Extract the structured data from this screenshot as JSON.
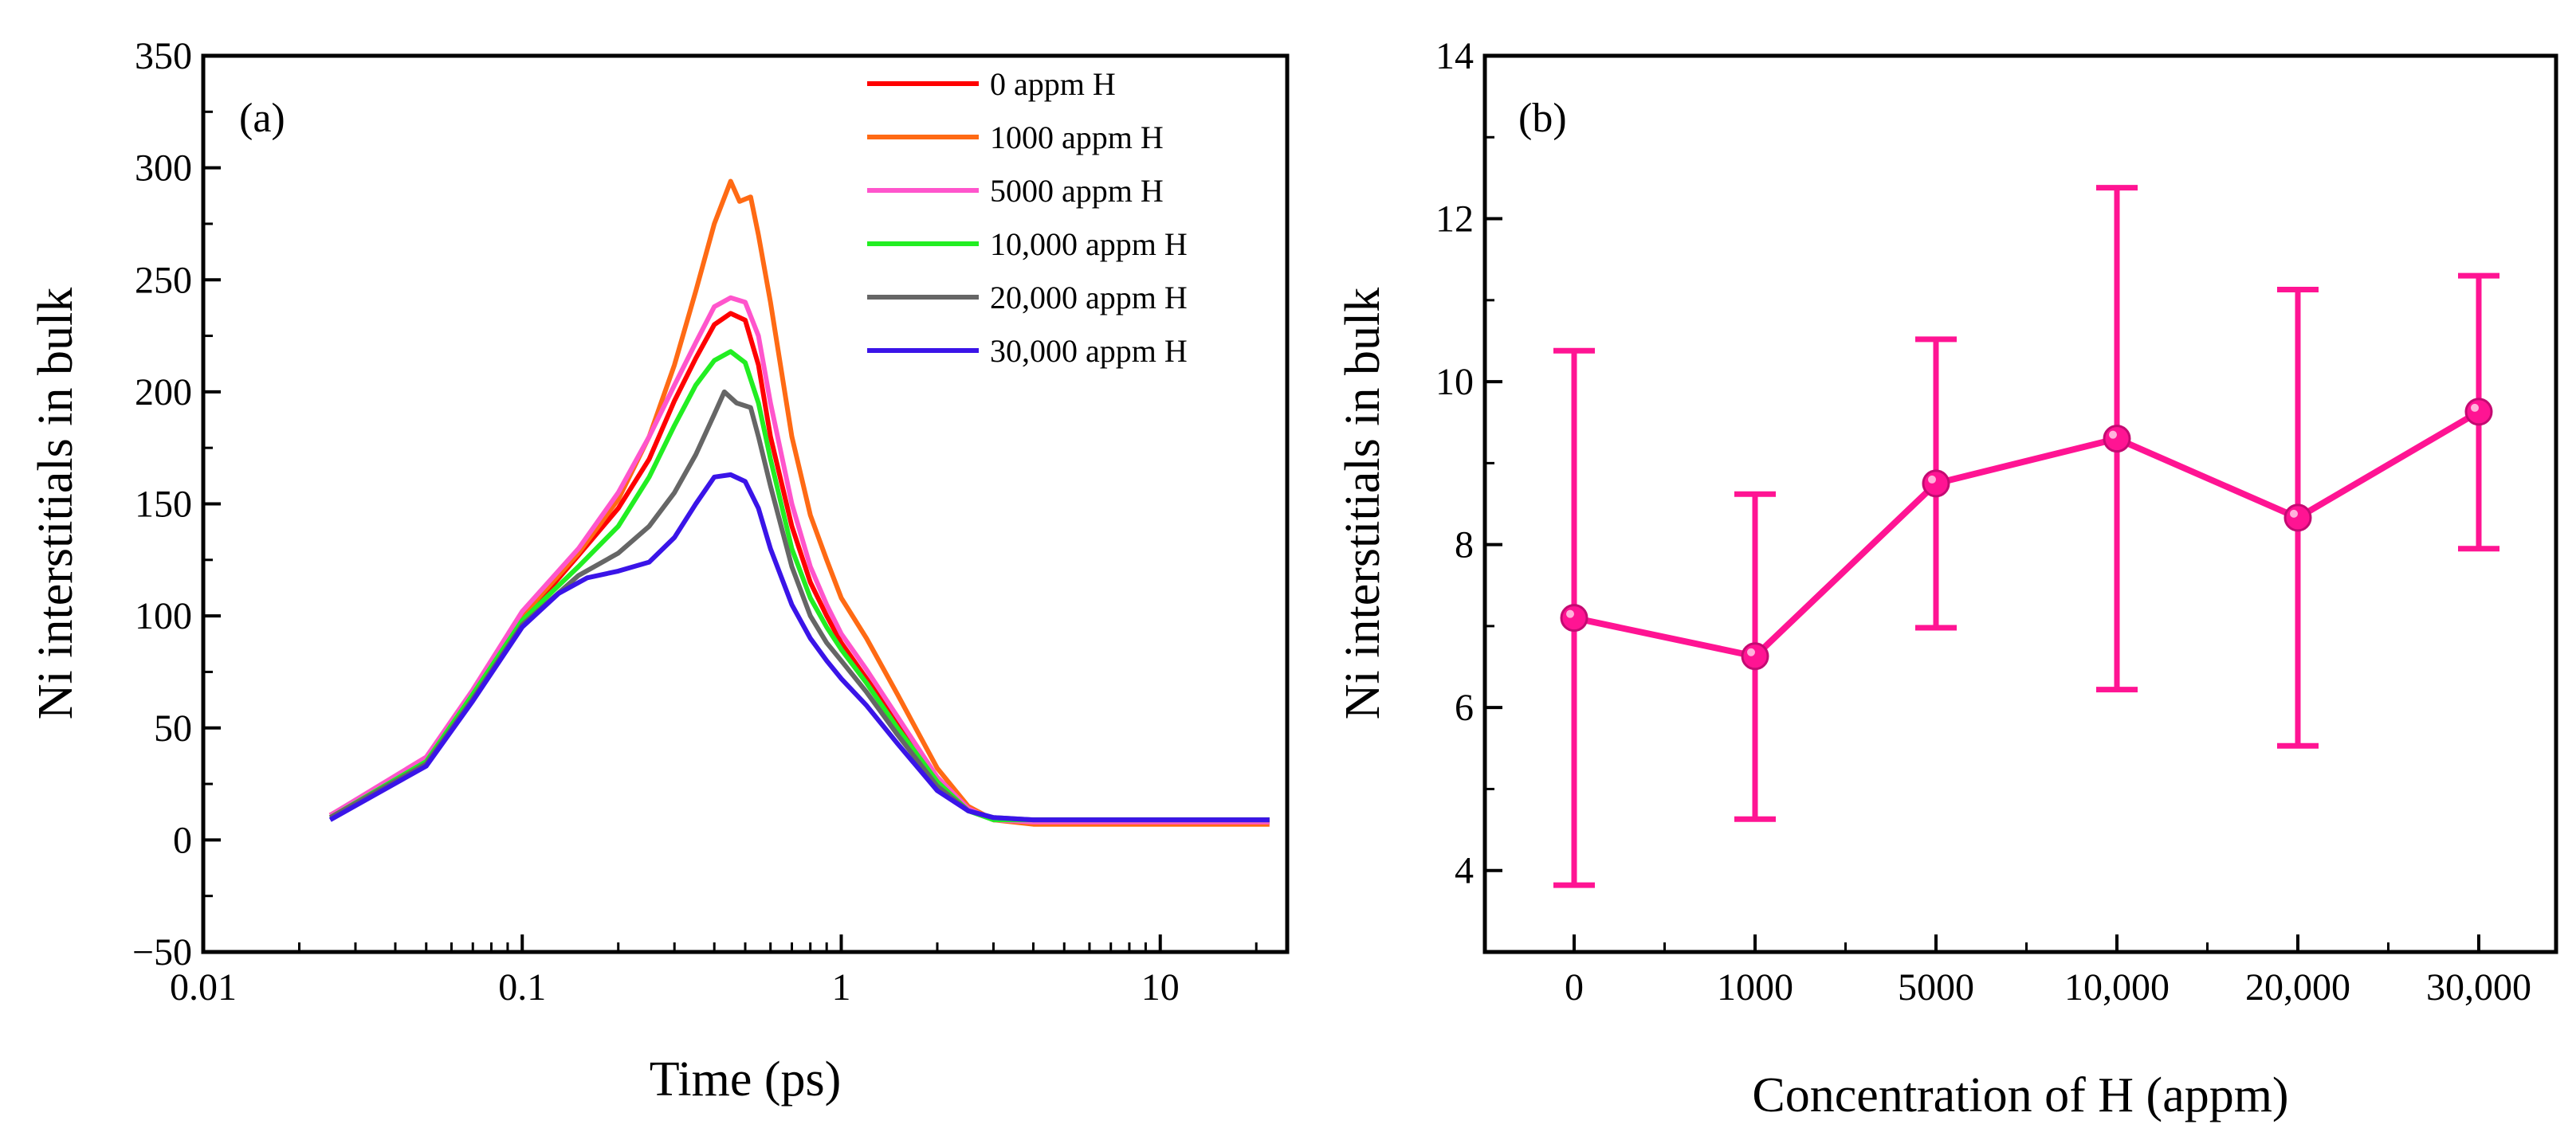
{
  "chart_data": [
    {
      "panel": "(a)",
      "type": "line",
      "xscale": "log",
      "xlabel": "Time (ps)",
      "ylabel": "Ni interstitials in bulk",
      "xlim": [
        0.01,
        25
      ],
      "ylim": [
        -50,
        350
      ],
      "xticks": [
        0.01,
        0.1,
        1,
        10
      ],
      "xtick_labels": [
        "0.01",
        "0.1",
        "1",
        "10"
      ],
      "yticks": [
        -50,
        0,
        50,
        100,
        150,
        200,
        250,
        300,
        350
      ],
      "ytick_labels": [
        "−50",
        "0",
        "50",
        "100",
        "150",
        "200",
        "250",
        "300",
        "350"
      ],
      "legend": "top-right",
      "series": [
        {
          "name": "0 appm H",
          "color": "#ff0000",
          "points": [
            [
              0.025,
              11
            ],
            [
              0.05,
              36
            ],
            [
              0.07,
              65
            ],
            [
              0.1,
              98
            ],
            [
              0.15,
              127
            ],
            [
              0.2,
              148
            ],
            [
              0.25,
              170
            ],
            [
              0.3,
              196
            ],
            [
              0.35,
              215
            ],
            [
              0.4,
              230
            ],
            [
              0.45,
              235
            ],
            [
              0.5,
              232
            ],
            [
              0.55,
              212
            ],
            [
              0.6,
              180
            ],
            [
              0.7,
              140
            ],
            [
              0.8,
              115
            ],
            [
              0.9,
              100
            ],
            [
              1.0,
              88
            ],
            [
              1.2,
              72
            ],
            [
              1.5,
              52
            ],
            [
              2.0,
              27
            ],
            [
              2.5,
              14
            ],
            [
              3.0,
              9
            ],
            [
              4.0,
              8
            ],
            [
              6.0,
              8
            ],
            [
              10,
              8
            ],
            [
              22,
              8
            ]
          ]
        },
        {
          "name": "1000 appm H",
          "color": "#ff6a14",
          "points": [
            [
              0.025,
              11
            ],
            [
              0.05,
              36
            ],
            [
              0.07,
              66
            ],
            [
              0.1,
              100
            ],
            [
              0.15,
              128
            ],
            [
              0.2,
              152
            ],
            [
              0.25,
              180
            ],
            [
              0.3,
              212
            ],
            [
              0.35,
              245
            ],
            [
              0.4,
              275
            ],
            [
              0.45,
              294
            ],
            [
              0.48,
              285
            ],
            [
              0.52,
              287
            ],
            [
              0.55,
              270
            ],
            [
              0.6,
              240
            ],
            [
              0.7,
              180
            ],
            [
              0.8,
              145
            ],
            [
              0.9,
              125
            ],
            [
              1.0,
              108
            ],
            [
              1.2,
              90
            ],
            [
              1.5,
              65
            ],
            [
              2.0,
              32
            ],
            [
              2.5,
              15
            ],
            [
              3.0,
              9
            ],
            [
              4.0,
              7
            ],
            [
              10,
              7
            ],
            [
              22,
              7
            ]
          ]
        },
        {
          "name": "5000 appm H",
          "color": "#ff55cc",
          "points": [
            [
              0.025,
              11
            ],
            [
              0.05,
              37
            ],
            [
              0.07,
              67
            ],
            [
              0.1,
              102
            ],
            [
              0.15,
              130
            ],
            [
              0.2,
              155
            ],
            [
              0.25,
              180
            ],
            [
              0.3,
              203
            ],
            [
              0.35,
              222
            ],
            [
              0.4,
              238
            ],
            [
              0.45,
              242
            ],
            [
              0.5,
              240
            ],
            [
              0.55,
              225
            ],
            [
              0.6,
              195
            ],
            [
              0.7,
              150
            ],
            [
              0.8,
              122
            ],
            [
              0.9,
              105
            ],
            [
              1.0,
              92
            ],
            [
              1.2,
              76
            ],
            [
              1.5,
              55
            ],
            [
              2.0,
              28
            ],
            [
              2.5,
              14
            ],
            [
              3.0,
              9
            ],
            [
              4.0,
              8
            ],
            [
              10,
              8
            ],
            [
              22,
              8
            ]
          ]
        },
        {
          "name": "10,000 appm H",
          "color": "#22ee22",
          "points": [
            [
              0.025,
              10
            ],
            [
              0.05,
              35
            ],
            [
              0.07,
              65
            ],
            [
              0.1,
              98
            ],
            [
              0.15,
              122
            ],
            [
              0.2,
              140
            ],
            [
              0.25,
              162
            ],
            [
              0.3,
              185
            ],
            [
              0.35,
              203
            ],
            [
              0.4,
              214
            ],
            [
              0.45,
              218
            ],
            [
              0.5,
              213
            ],
            [
              0.55,
              195
            ],
            [
              0.6,
              170
            ],
            [
              0.7,
              130
            ],
            [
              0.8,
              108
            ],
            [
              0.9,
              95
            ],
            [
              1.0,
              85
            ],
            [
              1.2,
              70
            ],
            [
              1.5,
              50
            ],
            [
              2.0,
              26
            ],
            [
              2.5,
              13
            ],
            [
              3.0,
              9
            ],
            [
              4.0,
              9
            ],
            [
              10,
              9
            ],
            [
              22,
              9
            ]
          ]
        },
        {
          "name": "20,000 appm H",
          "color": "#666666",
          "points": [
            [
              0.025,
              10
            ],
            [
              0.05,
              34
            ],
            [
              0.07,
              63
            ],
            [
              0.1,
              96
            ],
            [
              0.15,
              118
            ],
            [
              0.2,
              128
            ],
            [
              0.25,
              140
            ],
            [
              0.3,
              155
            ],
            [
              0.35,
              172
            ],
            [
              0.4,
              190
            ],
            [
              0.43,
              200
            ],
            [
              0.47,
              195
            ],
            [
              0.52,
              193
            ],
            [
              0.55,
              180
            ],
            [
              0.6,
              158
            ],
            [
              0.7,
              122
            ],
            [
              0.8,
              100
            ],
            [
              0.9,
              88
            ],
            [
              1.0,
              80
            ],
            [
              1.2,
              66
            ],
            [
              1.5,
              47
            ],
            [
              2.0,
              24
            ],
            [
              2.5,
              13
            ],
            [
              3.0,
              10
            ],
            [
              4.0,
              9
            ],
            [
              10,
              9
            ],
            [
              22,
              9
            ]
          ]
        },
        {
          "name": "30,000 appm H",
          "color": "#3a14e8",
          "points": [
            [
              0.025,
              9
            ],
            [
              0.05,
              33
            ],
            [
              0.07,
              62
            ],
            [
              0.1,
              95
            ],
            [
              0.13,
              110
            ],
            [
              0.16,
              117
            ],
            [
              0.2,
              120
            ],
            [
              0.25,
              124
            ],
            [
              0.3,
              135
            ],
            [
              0.35,
              150
            ],
            [
              0.4,
              162
            ],
            [
              0.45,
              163
            ],
            [
              0.5,
              160
            ],
            [
              0.55,
              148
            ],
            [
              0.6,
              130
            ],
            [
              0.7,
              105
            ],
            [
              0.8,
              90
            ],
            [
              0.9,
              80
            ],
            [
              1.0,
              72
            ],
            [
              1.2,
              60
            ],
            [
              1.5,
              43
            ],
            [
              2.0,
              22
            ],
            [
              2.5,
              13
            ],
            [
              3.0,
              10
            ],
            [
              4.0,
              9
            ],
            [
              10,
              9
            ],
            [
              22,
              9
            ]
          ]
        }
      ]
    },
    {
      "panel": "(b)",
      "type": "line",
      "xlabel": "Concentration of H (appm)",
      "ylabel": "Ni interstitials in bulk",
      "ylim": [
        3,
        14
      ],
      "yticks": [
        4,
        6,
        8,
        10,
        12,
        14
      ],
      "ytick_labels": [
        "4",
        "6",
        "8",
        "10",
        "12",
        "14"
      ],
      "categories": [
        "0",
        "1000",
        "5000",
        "10,000",
        "20,000",
        "30,000"
      ],
      "color": "#ff1493",
      "values": [
        7.1,
        6.63,
        8.75,
        9.3,
        8.33,
        9.63
      ],
      "error_low": [
        3.82,
        4.63,
        6.98,
        6.22,
        5.53,
        7.95
      ],
      "error_high": [
        10.38,
        8.62,
        10.52,
        12.38,
        11.13,
        11.3
      ]
    }
  ]
}
